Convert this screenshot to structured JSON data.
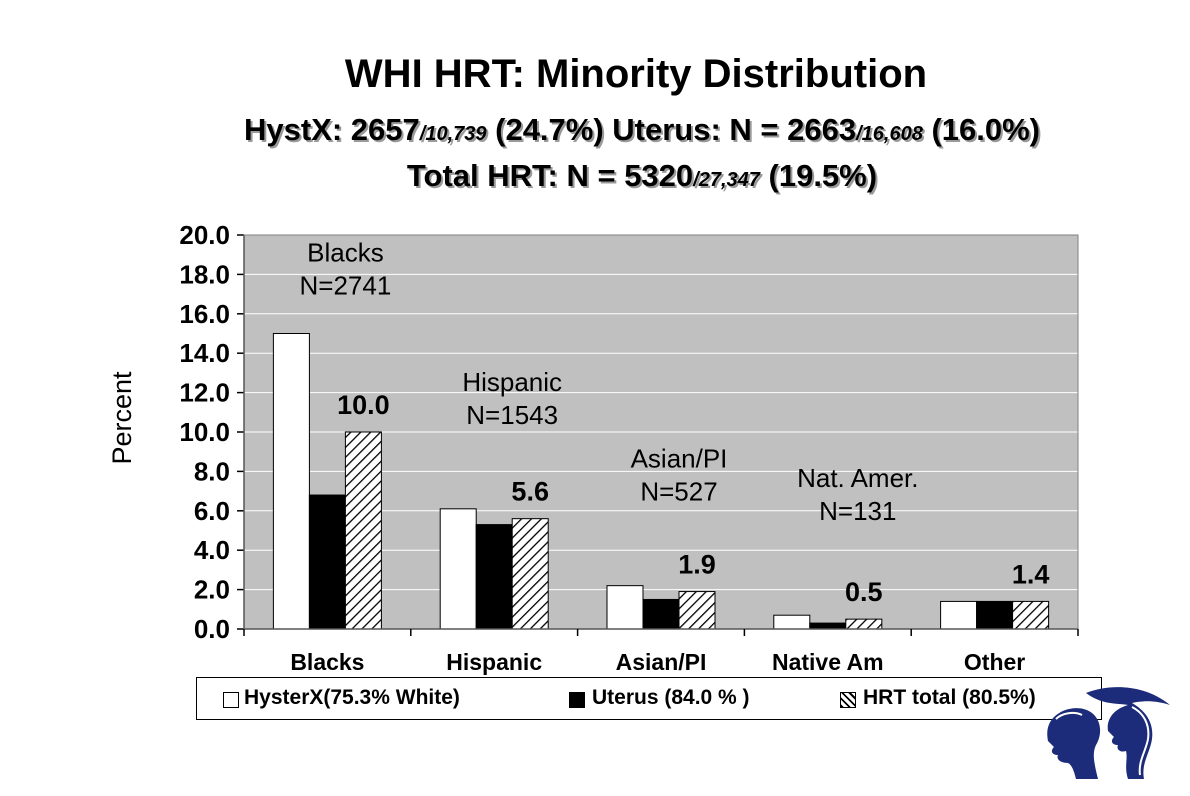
{
  "title": "WHI HRT: Minority Distribution",
  "subtitle1": {
    "a": "HystX: 2657",
    "a_small": "/10,739",
    "a_rest": " (24.7%)  Uterus: N = 2663",
    "b_small": "/16,608",
    "b_rest": " (16.0%)"
  },
  "subtitle2": {
    "a": "Total HRT: N = 5320",
    "a_small": "/27,347",
    "a_rest": " (19.5%)"
  },
  "colors": {
    "plot_bg": "#c0c0c0",
    "hysterx": "#ffffff",
    "uterus": "#000000",
    "grid": "#ffffff"
  },
  "chart_data": {
    "type": "bar",
    "ylabel": "Percent",
    "ylim": [
      0,
      20
    ],
    "yticks": [
      "0.0",
      "2.0",
      "4.0",
      "6.0",
      "8.0",
      "10.0",
      "12.0",
      "14.0",
      "16.0",
      "18.0",
      "20.0"
    ],
    "grid": true,
    "categories": [
      "Blacks",
      "Hispanic",
      "Asian/PI",
      "Native Am",
      "Other"
    ],
    "series": [
      {
        "name": "HysterX(75.3% White)",
        "values": [
          15.0,
          6.1,
          2.2,
          0.7,
          1.4
        ]
      },
      {
        "name": "Uterus (84.0 % )",
        "values": [
          6.8,
          5.3,
          1.5,
          0.3,
          1.4
        ]
      },
      {
        "name": "HRT total (80.5%)",
        "values": [
          10.0,
          5.6,
          1.9,
          0.5,
          1.4
        ]
      }
    ],
    "data_labels": [
      "10.0",
      "5.6",
      "1.9",
      "0.5",
      "1.4"
    ],
    "annotations": [
      {
        "line1": "Blacks",
        "line2": "N=2741"
      },
      {
        "line1": "Hispanic",
        "line2": "N=1543"
      },
      {
        "line1": "Asian/PI",
        "line2": "N=527"
      },
      {
        "line1": "Nat. Amer.",
        "line2": "N=131"
      }
    ],
    "legend_position": "bottom"
  }
}
